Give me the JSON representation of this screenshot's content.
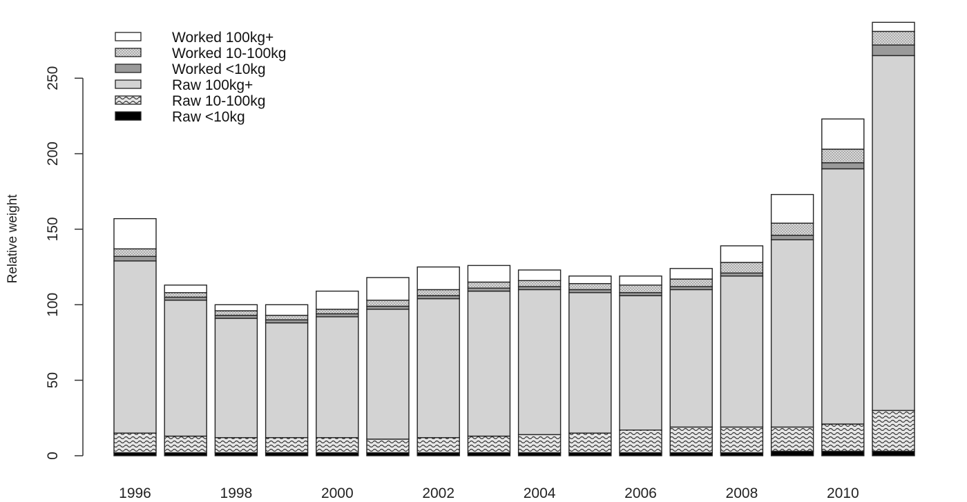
{
  "chart_data": {
    "type": "bar",
    "stacked": true,
    "title": "",
    "xlabel": "",
    "ylabel": "Relative weight",
    "ylim": [
      0,
      290
    ],
    "yticks": [
      0,
      50,
      100,
      150,
      200,
      250
    ],
    "grid": false,
    "legend_position": "top-left",
    "x": [
      1996,
      1997,
      1998,
      1999,
      2000,
      2001,
      2002,
      2003,
      2004,
      2005,
      2006,
      2007,
      2008,
      2009,
      2010,
      2011
    ],
    "xtick_labels": [
      "1996",
      "1998",
      "2000",
      "2002",
      "2004",
      "2006",
      "2008",
      "2010"
    ],
    "series": [
      {
        "name": "Raw <10kg",
        "fill": "solid-black",
        "values": [
          2,
          2,
          2,
          2,
          2,
          2,
          2,
          2,
          2,
          2,
          2,
          2,
          2,
          3,
          3,
          3
        ]
      },
      {
        "name": "Raw 10-100kg",
        "fill": "hatched",
        "values": [
          13,
          11,
          10,
          10,
          10,
          9,
          10,
          11,
          12,
          13,
          15,
          17,
          17,
          16,
          18,
          27
        ]
      },
      {
        "name": "Raw 100kg+",
        "fill": "light-gray",
        "values": [
          114,
          90,
          79,
          76,
          80,
          86,
          92,
          96,
          96,
          93,
          89,
          91,
          100,
          124,
          169,
          235
        ]
      },
      {
        "name": "Worked <10kg",
        "fill": "dark-gray",
        "values": [
          3,
          2,
          2,
          2,
          2,
          2,
          2,
          2,
          2,
          2,
          2,
          2,
          2,
          3,
          4,
          7
        ]
      },
      {
        "name": "Worked 10-100kg",
        "fill": "dotted-gray",
        "values": [
          5,
          3,
          3,
          3,
          3,
          4,
          4,
          4,
          4,
          4,
          5,
          5,
          7,
          8,
          9,
          9
        ]
      },
      {
        "name": "Worked 100kg+",
        "fill": "white",
        "values": [
          20,
          5,
          4,
          7,
          12,
          15,
          15,
          11,
          7,
          5,
          6,
          7,
          11,
          19,
          20,
          6
        ]
      }
    ],
    "colors": {
      "solid-black": "#000000",
      "hatched": "#d0d0d0",
      "light-gray": "#d3d3d3",
      "dark-gray": "#9a9a9a",
      "dotted-gray": "#c8c8c8",
      "white": "#ffffff",
      "border": "#222222"
    }
  }
}
